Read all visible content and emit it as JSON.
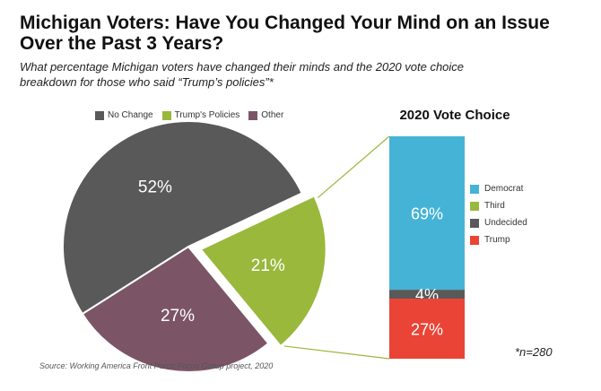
{
  "title": "Michigan Voters: Have You Changed Your Mind on an Issue Over the Past 3 Years?",
  "subtitle": "What percentage Michigan voters have changed their minds and the 2020 vote choice breakdown for those who said “Trump’s policies”*",
  "source": "Source: Working America Front Porch Focus Group project, 2020",
  "n_note": "*n=280",
  "chart_data": [
    {
      "type": "pie",
      "title": "",
      "legend_position": "top",
      "slices": [
        {
          "label": "No Change",
          "value": 52,
          "value_label": "52%",
          "color": "#595959"
        },
        {
          "label": "Trump's Policies",
          "value": 21,
          "value_label": "21%",
          "color": "#9ab83c",
          "exploded": true
        },
        {
          "label": "Other",
          "value": 27,
          "value_label": "27%",
          "color": "#7b5566"
        }
      ]
    },
    {
      "type": "bar",
      "stacked": true,
      "title": "2020 Vote Choice",
      "legend_position": "right",
      "segments": [
        {
          "label": "Democrat",
          "value": 69,
          "value_label": "69%",
          "color": "#45b3d6"
        },
        {
          "label": "Third",
          "value": 0,
          "value_label": "",
          "color": "#9ab83c"
        },
        {
          "label": "Undecided",
          "value": 4,
          "value_label": "4%",
          "color": "#595959"
        },
        {
          "label": "Trump",
          "value": 27,
          "value_label": "27%",
          "color": "#e94435"
        }
      ]
    }
  ]
}
